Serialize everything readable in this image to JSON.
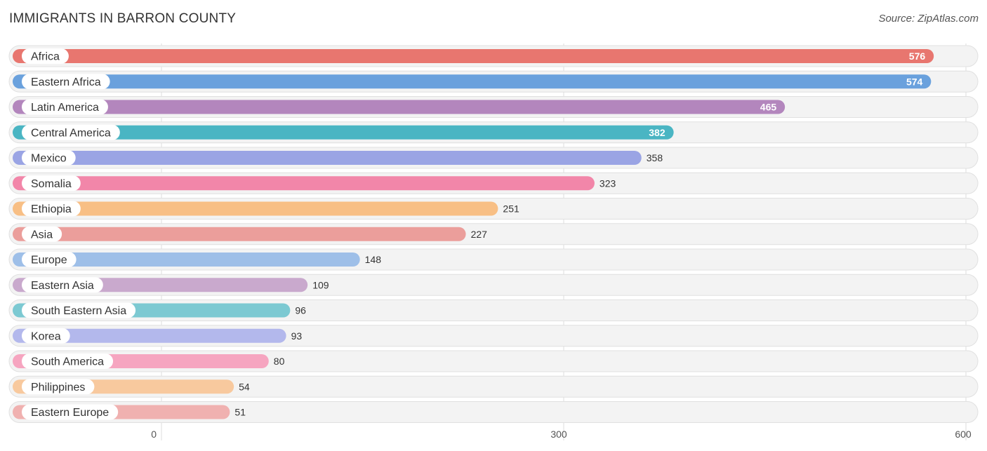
{
  "header": {
    "title": "IMMIGRANTS IN BARRON COUNTY",
    "source": "Source: ZipAtlas.com"
  },
  "chart_data": {
    "type": "bar",
    "orientation": "horizontal",
    "title": "IMMIGRANTS IN BARRON COUNTY",
    "categories": [
      "Africa",
      "Eastern Africa",
      "Latin America",
      "Central America",
      "Mexico",
      "Somalia",
      "Ethiopia",
      "Asia",
      "Europe",
      "Eastern Asia",
      "South Eastern Asia",
      "Korea",
      "South America",
      "Philippines",
      "Eastern Europe"
    ],
    "values": [
      576,
      574,
      465,
      382,
      358,
      323,
      251,
      227,
      148,
      109,
      96,
      93,
      80,
      54,
      51
    ],
    "colors": [
      "#e8766f",
      "#6aa1dd",
      "#b386bd",
      "#4ab5c3",
      "#9aa4e4",
      "#f286a9",
      "#f8bf85",
      "#eb9e9b",
      "#9ebfe8",
      "#c9a9cd",
      "#7cc9d2",
      "#b3b8ec",
      "#f6a5c0",
      "#f8c99e",
      "#f0b1b0"
    ],
    "xlim": [
      0,
      600
    ],
    "xticks": [
      0,
      300,
      600
    ],
    "grid": true,
    "value_labels": true
  }
}
